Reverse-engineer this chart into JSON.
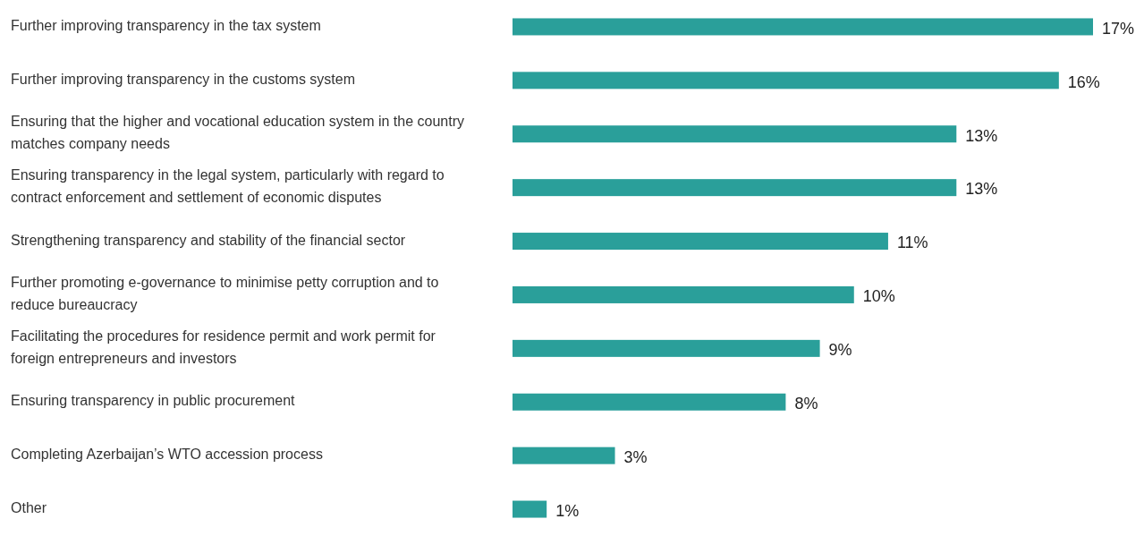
{
  "chart_data": {
    "type": "bar",
    "orientation": "horizontal",
    "categories": [
      "Further improving transparency in the tax system",
      "Further improving transparency in the customs system",
      "Ensuring that the higher and vocational education system in the country matches company needs",
      "Ensuring transparency in the legal system, particularly with regard to contract enforcement and settlement of economic disputes",
      "Strengthening transparency and stability of the financial sector",
      "Further promoting e-governance to minimise petty corruption and to reduce bureaucracy",
      "Facilitating the procedures for residence permit and work permit for foreign entrepreneurs and investors",
      "Ensuring transparency in public procurement",
      "Completing Azerbaijan’s WTO accession process",
      "Other"
    ],
    "values": [
      17,
      16,
      13,
      13,
      11,
      10,
      9,
      8,
      3,
      1
    ],
    "value_labels": [
      "17%",
      "16%",
      "13%",
      "13%",
      "11%",
      "10%",
      "9%",
      "8%",
      "3%",
      "1%"
    ],
    "color": "#2a9f9a"
  }
}
